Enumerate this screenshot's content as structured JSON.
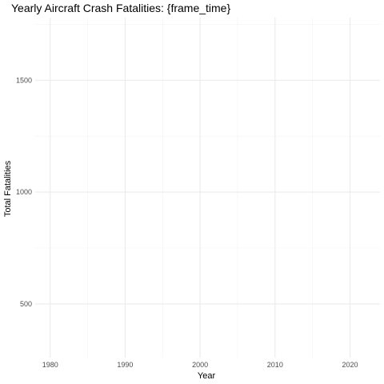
{
  "chart_data": {
    "type": "line",
    "title": "Yearly Aircraft Crash Fatalities: {frame_time}",
    "xlabel": "Year",
    "ylabel": "Total Fatalities",
    "xlim": [
      1978,
      2024
    ],
    "ylim": [
      260,
      1780
    ],
    "x_ticks": [
      1980,
      1990,
      2000,
      2010,
      2020
    ],
    "x_tick_labels": [
      "1980",
      "1990",
      "2000",
      "2010",
      "2020"
    ],
    "x_minor_ticks": [
      1985,
      1995,
      2005,
      2015
    ],
    "y_ticks": [
      500,
      1000,
      1500
    ],
    "y_tick_labels": [
      "500",
      "1000",
      "1500"
    ],
    "y_minor_ticks": [
      250,
      750,
      1250,
      1750
    ],
    "grid": true,
    "series": []
  }
}
